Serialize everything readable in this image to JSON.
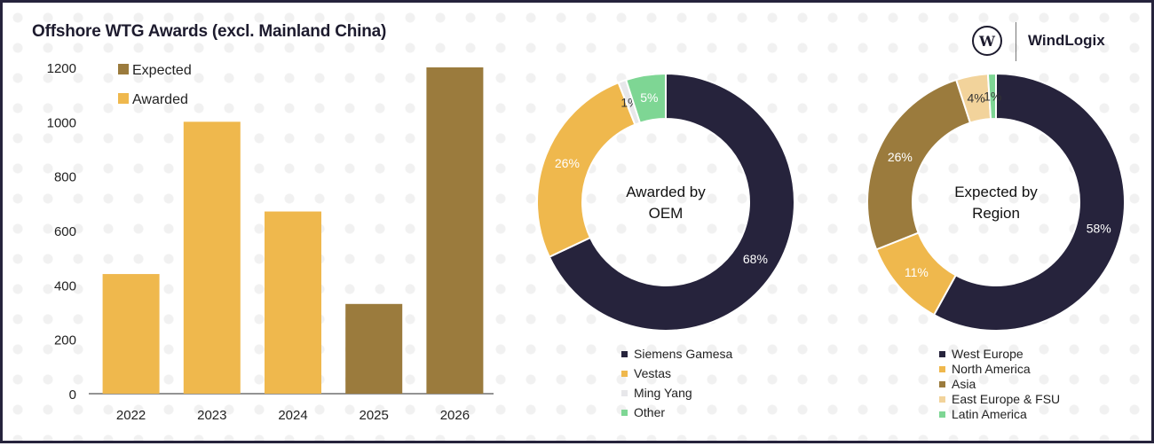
{
  "title": "Offshore WTG Awards (excl. Mainland China)",
  "logo": {
    "mark": "W",
    "name": "WindLogix"
  },
  "colors": {
    "awarded": "#efb84d",
    "expected": "#9b7b3d",
    "siemens": "#26233c",
    "vestas": "#efb84d",
    "mingyang": "#e7e7ea",
    "other": "#7ed694",
    "west_europe": "#26233c",
    "north_america": "#efb84d",
    "asia": "#9b7b3d",
    "east_europe": "#f2d39b",
    "latin_america": "#7ed694"
  },
  "chart_data": [
    {
      "type": "bar",
      "title": "Offshore WTG Awards (excl. Mainland China)",
      "categories": [
        "2022",
        "2023",
        "2024",
        "2025",
        "2026"
      ],
      "series": [
        {
          "name": "Expected",
          "values": [
            null,
            null,
            null,
            330,
            1200
          ]
        },
        {
          "name": "Awarded",
          "values": [
            440,
            1000,
            670,
            null,
            null
          ]
        }
      ],
      "ylim": [
        0,
        1200
      ],
      "yticks": [
        "0",
        "200",
        "400",
        "600",
        "800",
        "1000",
        "1200"
      ],
      "legend": [
        "Expected",
        "Awarded"
      ],
      "legend_position": "top-left",
      "grid": false
    },
    {
      "type": "pie",
      "donut": true,
      "center_label": [
        "Awarded by",
        "OEM"
      ],
      "slices": [
        {
          "name": "Siemens Gamesa",
          "value": 68,
          "label": "68%"
        },
        {
          "name": "Vestas",
          "value": 26,
          "label": "26%"
        },
        {
          "name": "Ming Yang",
          "value": 1,
          "label": "1%"
        },
        {
          "name": "Other",
          "value": 5,
          "label": "5%"
        }
      ],
      "legend_position": "bottom"
    },
    {
      "type": "pie",
      "donut": true,
      "center_label": [
        "Expected by",
        "Region"
      ],
      "slices": [
        {
          "name": "West Europe",
          "value": 58,
          "label": "58%"
        },
        {
          "name": "North America",
          "value": 11,
          "label": "11%"
        },
        {
          "name": "Asia",
          "value": 26,
          "label": "26%"
        },
        {
          "name": "East Europe & FSU",
          "value": 4,
          "label": "4%"
        },
        {
          "name": "Latin America",
          "value": 1,
          "label": "1%"
        }
      ],
      "legend_position": "bottom"
    }
  ]
}
